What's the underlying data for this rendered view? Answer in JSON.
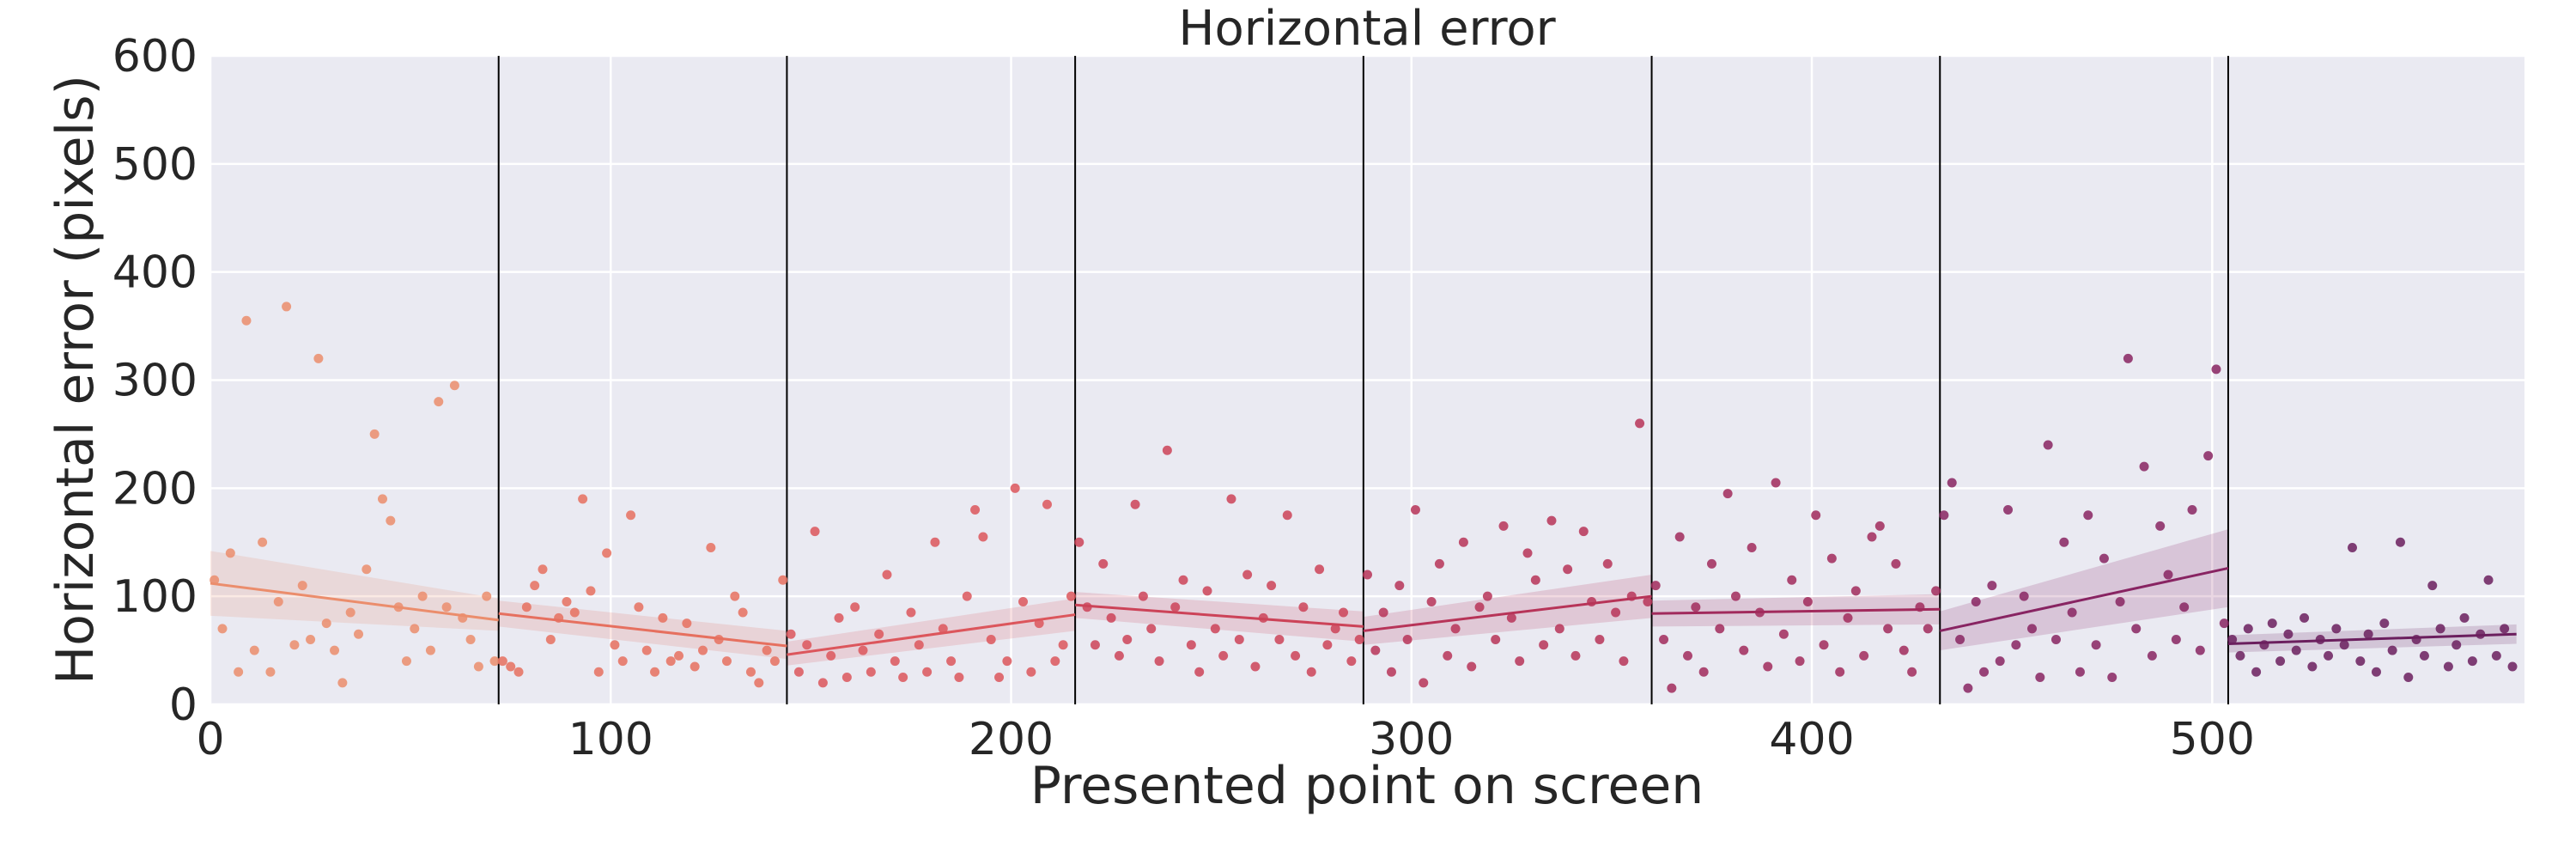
{
  "chart_data": {
    "type": "scatter",
    "title": "Horizontal error",
    "xlabel": "Presented point on screen",
    "ylabel": "Horizontal error (pixels)",
    "xlim": [
      0,
      578
    ],
    "ylim": [
      0,
      600
    ],
    "xticks": [
      0,
      100,
      200,
      300,
      400,
      500
    ],
    "yticks": [
      0,
      100,
      200,
      300,
      400,
      500,
      600
    ],
    "grid": true,
    "background": "#eaeaf2",
    "segment_boundaries": [
      72,
      144,
      216,
      288,
      360,
      432,
      504
    ],
    "series": [
      {
        "color": "#eb8d6c",
        "x": [
          1,
          3,
          5,
          7,
          9,
          11,
          13,
          15,
          17,
          19,
          21,
          23,
          25,
          27,
          29,
          31,
          33,
          35,
          37,
          39,
          41,
          43,
          45,
          47,
          49,
          51,
          53,
          55,
          57,
          59,
          61,
          63,
          65,
          67,
          69,
          71
        ],
        "y": [
          115,
          70,
          140,
          30,
          355,
          50,
          150,
          30,
          95,
          368,
          55,
          110,
          60,
          320,
          75,
          50,
          20,
          85,
          65,
          125,
          250,
          190,
          170,
          90,
          40,
          70,
          100,
          50,
          280,
          90,
          295,
          80,
          60,
          35,
          100,
          40
        ],
        "fit": {
          "x": [
            0,
            72
          ],
          "y": [
            112,
            78
          ],
          "ci_lower": [
            82,
            68
          ],
          "ci_upper": [
            142,
            98
          ]
        }
      },
      {
        "color": "#e6705f",
        "x": [
          73,
          75,
          77,
          79,
          81,
          83,
          85,
          87,
          89,
          91,
          93,
          95,
          97,
          99,
          101,
          103,
          105,
          107,
          109,
          111,
          113,
          115,
          117,
          119,
          121,
          123,
          125,
          127,
          129,
          131,
          133,
          135,
          137,
          139,
          141,
          143
        ],
        "y": [
          40,
          35,
          30,
          90,
          110,
          125,
          60,
          80,
          95,
          85,
          190,
          105,
          30,
          140,
          55,
          40,
          175,
          90,
          50,
          30,
          80,
          40,
          45,
          75,
          35,
          50,
          145,
          60,
          40,
          100,
          85,
          30,
          20,
          50,
          40,
          115
        ],
        "fit": {
          "x": [
            72,
            144
          ],
          "y": [
            84,
            54
          ],
          "ci_lower": [
            72,
            42
          ],
          "ci_upper": [
            96,
            68
          ]
        }
      },
      {
        "color": "#dc565c",
        "x": [
          145,
          147,
          149,
          151,
          153,
          155,
          157,
          159,
          161,
          163,
          165,
          167,
          169,
          171,
          173,
          175,
          177,
          179,
          181,
          183,
          185,
          187,
          189,
          191,
          193,
          195,
          197,
          199,
          201,
          203,
          205,
          207,
          209,
          211,
          213,
          215
        ],
        "y": [
          65,
          30,
          55,
          160,
          20,
          45,
          80,
          25,
          90,
          50,
          30,
          65,
          120,
          40,
          25,
          85,
          55,
          30,
          150,
          70,
          40,
          25,
          100,
          180,
          155,
          60,
          25,
          40,
          200,
          95,
          30,
          75,
          185,
          40,
          55,
          100
        ],
        "fit": {
          "x": [
            144,
            216
          ],
          "y": [
            46,
            83
          ],
          "ci_lower": [
            36,
            68
          ],
          "ci_upper": [
            58,
            98
          ]
        }
      },
      {
        "color": "#cc4358",
        "x": [
          217,
          219,
          221,
          223,
          225,
          227,
          229,
          231,
          233,
          235,
          237,
          239,
          241,
          243,
          245,
          247,
          249,
          251,
          253,
          255,
          257,
          259,
          261,
          263,
          265,
          267,
          269,
          271,
          273,
          275,
          277,
          279,
          281,
          283,
          285,
          287
        ],
        "y": [
          150,
          90,
          55,
          130,
          80,
          45,
          60,
          185,
          100,
          70,
          40,
          235,
          90,
          115,
          55,
          30,
          105,
          70,
          45,
          190,
          60,
          120,
          35,
          80,
          110,
          60,
          175,
          45,
          90,
          30,
          125,
          55,
          70,
          85,
          40,
          60
        ],
        "fit": {
          "x": [
            216,
            288
          ],
          "y": [
            92,
            72
          ],
          "ci_lower": [
            80,
            58
          ],
          "ci_upper": [
            104,
            86
          ]
        }
      },
      {
        "color": "#b73458",
        "x": [
          289,
          291,
          293,
          295,
          297,
          299,
          301,
          303,
          305,
          307,
          309,
          311,
          313,
          315,
          317,
          319,
          321,
          323,
          325,
          327,
          329,
          331,
          333,
          335,
          337,
          339,
          341,
          343,
          345,
          347,
          349,
          351,
          353,
          355,
          357,
          359
        ],
        "y": [
          120,
          50,
          85,
          30,
          110,
          60,
          180,
          20,
          95,
          130,
          45,
          70,
          150,
          35,
          90,
          100,
          60,
          165,
          80,
          40,
          140,
          115,
          55,
          170,
          70,
          125,
          45,
          160,
          95,
          60,
          130,
          85,
          40,
          100,
          260,
          95
        ],
        "fit": {
          "x": [
            288,
            360
          ],
          "y": [
            68,
            100
          ],
          "ci_lower": [
            55,
            80
          ],
          "ci_upper": [
            81,
            120
          ]
        }
      },
      {
        "color": "#a12a5c",
        "x": [
          361,
          363,
          365,
          367,
          369,
          371,
          373,
          375,
          377,
          379,
          381,
          383,
          385,
          387,
          389,
          391,
          393,
          395,
          397,
          399,
          401,
          403,
          405,
          407,
          409,
          411,
          413,
          415,
          417,
          419,
          421,
          423,
          425,
          427,
          429,
          431
        ],
        "y": [
          110,
          60,
          15,
          155,
          45,
          90,
          30,
          130,
          70,
          195,
          100,
          50,
          145,
          85,
          35,
          205,
          65,
          115,
          40,
          95,
          175,
          55,
          135,
          30,
          80,
          105,
          45,
          155,
          165,
          70,
          130,
          50,
          30,
          90,
          70,
          105
        ],
        "fit": {
          "x": [
            360,
            432
          ],
          "y": [
            84,
            88
          ],
          "ci_lower": [
            72,
            74
          ],
          "ci_upper": [
            96,
            102
          ]
        }
      },
      {
        "color": "#882462",
        "x": [
          433,
          435,
          437,
          439,
          441,
          443,
          445,
          447,
          449,
          451,
          453,
          455,
          457,
          459,
          461,
          463,
          465,
          467,
          469,
          471,
          473,
          475,
          477,
          479,
          481,
          483,
          485,
          487,
          489,
          491,
          493,
          495,
          497,
          499,
          501,
          503
        ],
        "y": [
          175,
          205,
          60,
          15,
          95,
          30,
          110,
          40,
          180,
          55,
          100,
          70,
          25,
          240,
          60,
          150,
          85,
          30,
          175,
          55,
          135,
          25,
          95,
          320,
          70,
          220,
          45,
          165,
          120,
          60,
          90,
          180,
          50,
          230,
          310,
          75
        ],
        "fit": {
          "x": [
            432,
            504
          ],
          "y": [
            68,
            126
          ],
          "ci_lower": [
            50,
            90
          ],
          "ci_upper": [
            86,
            162
          ]
        }
      },
      {
        "color": "#6b1f5e",
        "x": [
          505,
          507,
          509,
          511,
          513,
          515,
          517,
          519,
          521,
          523,
          525,
          527,
          529,
          531,
          533,
          535,
          537,
          539,
          541,
          543,
          545,
          547,
          549,
          551,
          553,
          555,
          557,
          559,
          561,
          563,
          565,
          567,
          569,
          571,
          573,
          575
        ],
        "y": [
          60,
          45,
          70,
          30,
          55,
          75,
          40,
          65,
          50,
          80,
          35,
          60,
          45,
          70,
          55,
          145,
          40,
          65,
          30,
          75,
          50,
          150,
          25,
          60,
          45,
          110,
          70,
          35,
          55,
          80,
          40,
          65,
          115,
          45,
          70,
          35
        ],
        "fit": {
          "x": [
            504,
            576
          ],
          "y": [
            56,
            65
          ],
          "ci_lower": [
            48,
            56
          ],
          "ci_upper": [
            64,
            74
          ]
        }
      }
    ]
  }
}
